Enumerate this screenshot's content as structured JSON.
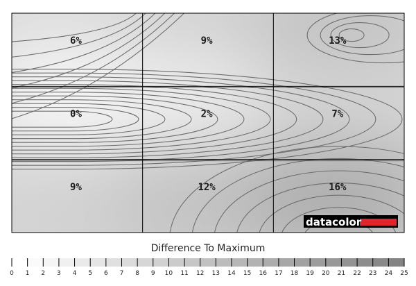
{
  "chart_data": {
    "type": "heatmap",
    "title": "",
    "grid": {
      "rows": 3,
      "cols": 3
    },
    "cells": [
      {
        "row": 0,
        "col": 0,
        "value": 6,
        "label": "6%"
      },
      {
        "row": 0,
        "col": 1,
        "value": 9,
        "label": "9%"
      },
      {
        "row": 0,
        "col": 2,
        "value": 13,
        "label": "13%"
      },
      {
        "row": 1,
        "col": 0,
        "value": 0,
        "label": "0%"
      },
      {
        "row": 1,
        "col": 1,
        "value": 2,
        "label": "2%"
      },
      {
        "row": 1,
        "col": 2,
        "value": 7,
        "label": "7%"
      },
      {
        "row": 2,
        "col": 0,
        "value": 9,
        "label": "9%"
      },
      {
        "row": 2,
        "col": 1,
        "value": 12,
        "label": "12%"
      },
      {
        "row": 2,
        "col": 2,
        "value": 16,
        "label": "16%"
      }
    ],
    "legend": {
      "title": "Difference To Maximum",
      "min": 0,
      "max": 25,
      "ticks": [
        "0",
        "1",
        "2",
        "3",
        "4",
        "5",
        "6",
        "7",
        "8",
        "9",
        "10",
        "11",
        "12",
        "13",
        "14",
        "15",
        "16",
        "17",
        "18",
        "19",
        "20",
        "21",
        "22",
        "23",
        "24",
        "25"
      ]
    },
    "brand": {
      "text": "datacolor",
      "accent_color": "#e0262b"
    },
    "colors": {
      "low": "#ffffff",
      "high": "#7e7e7e",
      "contour": "#6e6e6e"
    }
  }
}
